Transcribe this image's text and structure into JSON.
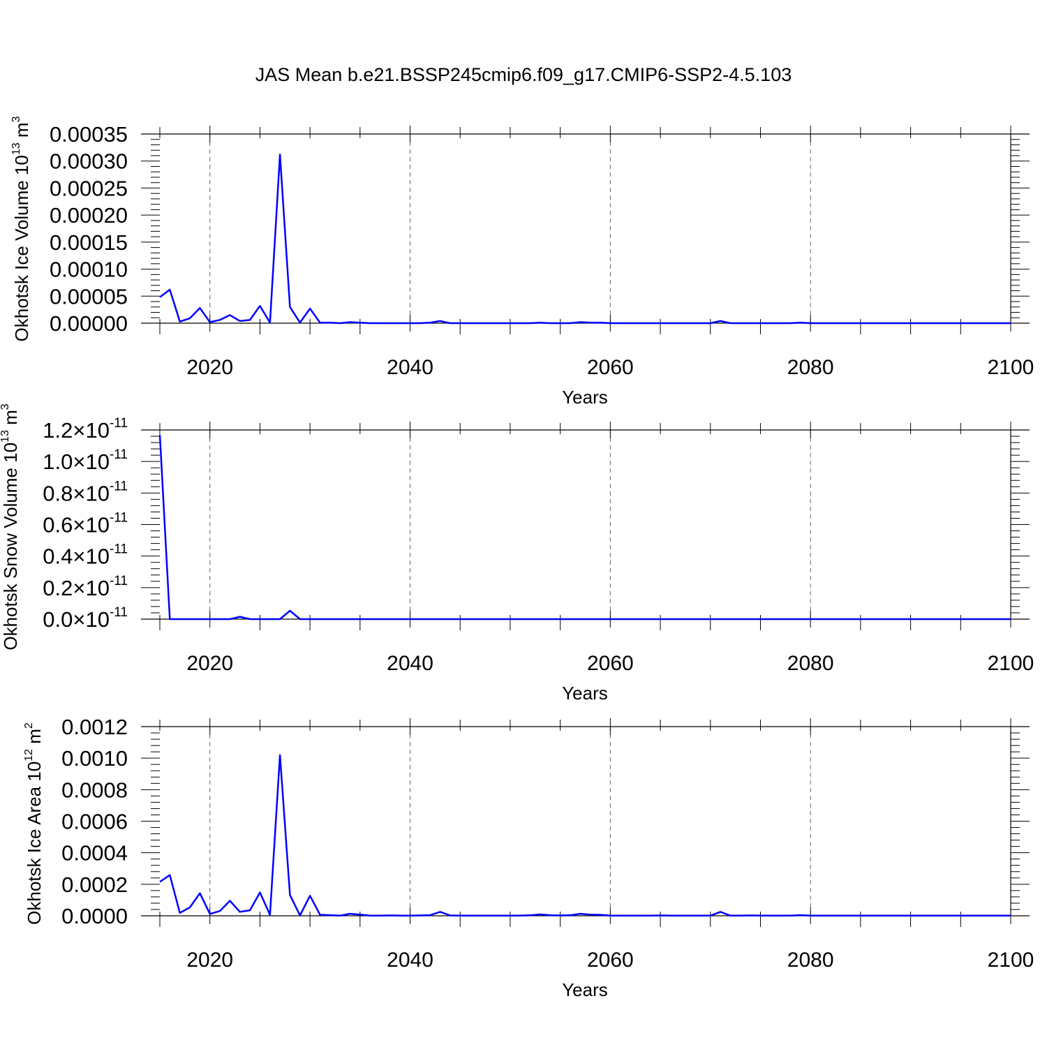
{
  "title": "JAS Mean b.e21.BSSP245cmip6.f09_g17.CMIP6-SSP2-4.5.103",
  "chart_data": [
    {
      "type": "line",
      "ylabel": "Okhotsk Ice Volume 10",
      "ylabel_exp": "13",
      "ylabel_unit": " m",
      "ylabel_unit_exp": "3",
      "xlabel": "Years",
      "xlim": [
        2015,
        2100
      ],
      "ylim": [
        0,
        0.00035
      ],
      "x_ticks": [
        2020,
        2040,
        2060,
        2080,
        2100
      ],
      "y_ticks": [
        "0.00000",
        "0.00005",
        "0.00010",
        "0.00015",
        "0.00020",
        "0.00025",
        "0.00030",
        "0.00035"
      ],
      "y_tick_values": [
        0,
        5e-05,
        0.0001,
        0.00015,
        0.0002,
        0.00025,
        0.0003,
        0.00035
      ],
      "line_color": "#0000ff",
      "grid": "vertical dashed at labeled years",
      "series": [
        {
          "x": [
            2015,
            2016,
            2017,
            2018,
            2019,
            2020,
            2021,
            2022,
            2023,
            2024,
            2025,
            2026,
            2027,
            2028,
            2029,
            2030,
            2031,
            2032,
            2033,
            2034,
            2035,
            2036,
            2037,
            2038,
            2039,
            2040,
            2041,
            2042,
            2043,
            2044,
            2045,
            2046,
            2047,
            2048,
            2049,
            2050,
            2051,
            2052,
            2053,
            2054,
            2055,
            2056,
            2057,
            2058,
            2059,
            2060,
            2061,
            2062,
            2063,
            2064,
            2065,
            2066,
            2067,
            2068,
            2069,
            2070,
            2071,
            2072,
            2073,
            2074,
            2075,
            2076,
            2077,
            2078,
            2079,
            2080,
            2081,
            2082,
            2083,
            2084,
            2085,
            2086,
            2087,
            2088,
            2089,
            2090,
            2091,
            2092,
            2093,
            2094,
            2095,
            2096,
            2097,
            2098,
            2099,
            2100
          ],
          "y": [
            4.8e-05,
            6.2e-05,
            3e-06,
            9e-06,
            2.8e-05,
            2e-06,
            6e-06,
            1.5e-05,
            4e-06,
            6e-06,
            3.2e-05,
            1e-06,
            0.000312,
            3e-05,
            1e-06,
            2.7e-05,
            1e-06,
            1e-06,
            0.0,
            2e-06,
            1e-06,
            0.0,
            0.0,
            0.0,
            0.0,
            0.0,
            0.0,
            1e-06,
            4e-06,
            0.0,
            0.0,
            0.0,
            0.0,
            0.0,
            0.0,
            0.0,
            0.0,
            0.0,
            1e-06,
            0.0,
            0.0,
            0.0,
            2e-06,
            1e-06,
            1e-06,
            0.0,
            0.0,
            0.0,
            0.0,
            0.0,
            0.0,
            0.0,
            0.0,
            0.0,
            0.0,
            0.0,
            4e-06,
            0.0,
            0.0,
            0.0,
            0.0,
            0.0,
            0.0,
            0.0,
            1e-06,
            0.0,
            0.0,
            0.0,
            0.0,
            0.0,
            0.0,
            0.0,
            0.0,
            0.0,
            0.0,
            0.0,
            0.0,
            0.0,
            0.0,
            0.0,
            0.0,
            0.0,
            0.0,
            0.0,
            0.0,
            0.0
          ]
        }
      ]
    },
    {
      "type": "line",
      "ylabel": "Okhotsk Snow Volume 10",
      "ylabel_exp": "13",
      "ylabel_unit": " m",
      "ylabel_unit_exp": "3",
      "xlabel": "Years",
      "xlim": [
        2015,
        2100
      ],
      "ylim": [
        0,
        1.2e-11
      ],
      "x_ticks": [
        2020,
        2040,
        2060,
        2080,
        2100
      ],
      "y_ticks": [
        "0.0",
        "0.2",
        "0.4",
        "0.6",
        "0.8",
        "1.0",
        "1.2"
      ],
      "y_tick_suffix": "×10",
      "y_tick_suffix_exp": "-11",
      "y_tick_values": [
        0,
        2e-12,
        4e-12,
        6e-12,
        8e-12,
        1e-11,
        1.2e-11
      ],
      "line_color": "#0000ff",
      "grid": "vertical dashed at labeled years",
      "series": [
        {
          "x": [
            2015,
            2016,
            2017,
            2018,
            2019,
            2020,
            2021,
            2022,
            2023,
            2024,
            2025,
            2026,
            2027,
            2028,
            2029,
            2030,
            2031,
            2032,
            2033,
            2034,
            2035,
            2036,
            2037,
            2038,
            2039,
            2040,
            2041,
            2042,
            2043,
            2044,
            2045,
            2046,
            2047,
            2048,
            2049,
            2050,
            2051,
            2052,
            2053,
            2054,
            2055,
            2056,
            2057,
            2058,
            2059,
            2060,
            2061,
            2062,
            2063,
            2064,
            2065,
            2066,
            2067,
            2068,
            2069,
            2070,
            2071,
            2072,
            2073,
            2074,
            2075,
            2076,
            2077,
            2078,
            2079,
            2080,
            2081,
            2082,
            2083,
            2084,
            2085,
            2086,
            2087,
            2088,
            2089,
            2090,
            2091,
            2092,
            2093,
            2094,
            2095,
            2096,
            2097,
            2098,
            2099,
            2100
          ],
          "y": [
            1.17e-11,
            0.0,
            0.0,
            0.0,
            0.0,
            0.0,
            0.0,
            0.0,
            1.5e-13,
            0.0,
            0.0,
            0.0,
            0.0,
            5.3e-13,
            0.0,
            0.0,
            0.0,
            0.0,
            0.0,
            0.0,
            0.0,
            0.0,
            0.0,
            0.0,
            0.0,
            0.0,
            0.0,
            0.0,
            0.0,
            0.0,
            0.0,
            0.0,
            0.0,
            0.0,
            0.0,
            0.0,
            0.0,
            0.0,
            0.0,
            0.0,
            0.0,
            0.0,
            0.0,
            0.0,
            0.0,
            0.0,
            0.0,
            0.0,
            0.0,
            0.0,
            0.0,
            0.0,
            0.0,
            0.0,
            0.0,
            0.0,
            0.0,
            0.0,
            0.0,
            0.0,
            0.0,
            0.0,
            0.0,
            0.0,
            0.0,
            0.0,
            0.0,
            0.0,
            0.0,
            0.0,
            0.0,
            0.0,
            0.0,
            0.0,
            0.0,
            0.0,
            0.0,
            0.0,
            0.0,
            0.0,
            0.0,
            0.0,
            0.0,
            0.0,
            0.0,
            0.0
          ]
        }
      ]
    },
    {
      "type": "line",
      "ylabel": "Okhotsk Ice Area 10",
      "ylabel_exp": "12",
      "ylabel_unit": " m",
      "ylabel_unit_exp": "2",
      "xlabel": "Years",
      "xlim": [
        2015,
        2100
      ],
      "ylim": [
        0,
        0.0012
      ],
      "x_ticks": [
        2020,
        2040,
        2060,
        2080,
        2100
      ],
      "y_ticks": [
        "0.0000",
        "0.0002",
        "0.0004",
        "0.0006",
        "0.0008",
        "0.0010",
        "0.0012"
      ],
      "y_tick_values": [
        0,
        0.0002,
        0.0004,
        0.0006,
        0.0008,
        0.001,
        0.0012
      ],
      "line_color": "#0000ff",
      "grid": "vertical dashed at labeled years",
      "series": [
        {
          "x": [
            2015,
            2016,
            2017,
            2018,
            2019,
            2020,
            2021,
            2022,
            2023,
            2024,
            2025,
            2026,
            2027,
            2028,
            2029,
            2030,
            2031,
            2032,
            2033,
            2034,
            2035,
            2036,
            2037,
            2038,
            2039,
            2040,
            2041,
            2042,
            2043,
            2044,
            2045,
            2046,
            2047,
            2048,
            2049,
            2050,
            2051,
            2052,
            2053,
            2054,
            2055,
            2056,
            2057,
            2058,
            2059,
            2060,
            2061,
            2062,
            2063,
            2064,
            2065,
            2066,
            2067,
            2068,
            2069,
            2070,
            2071,
            2072,
            2073,
            2074,
            2075,
            2076,
            2077,
            2078,
            2079,
            2080,
            2081,
            2082,
            2083,
            2084,
            2085,
            2086,
            2087,
            2088,
            2089,
            2090,
            2091,
            2092,
            2093,
            2094,
            2095,
            2096,
            2097,
            2098,
            2099,
            2100
          ],
          "y": [
            0.000215,
            0.000258,
            1.8e-05,
            5.3e-05,
            0.000143,
            1.2e-05,
            3e-05,
            9.5e-05,
            2.5e-05,
            3.5e-05,
            0.000148,
            6e-06,
            0.00102,
            0.000132,
            2e-06,
            0.000127,
            6e-06,
            4e-06,
            1e-06,
            1.3e-05,
            7e-06,
            1e-06,
            1e-06,
            2e-06,
            1e-06,
            1e-06,
            2e-06,
            4e-06,
            2.5e-05,
            2e-06,
            1e-06,
            1e-06,
            1e-06,
            1e-06,
            1e-06,
            1e-06,
            1e-06,
            3e-06,
            9e-06,
            3e-06,
            2e-06,
            3e-06,
            1.3e-05,
            7e-06,
            6e-06,
            1e-06,
            1e-06,
            1e-06,
            1e-06,
            1e-06,
            2e-06,
            1e-06,
            1e-06,
            1e-06,
            1e-06,
            1e-06,
            2.5e-05,
            1e-06,
            1e-06,
            2e-06,
            1e-06,
            1e-06,
            1e-06,
            1e-06,
            4e-06,
            1e-06,
            1e-06,
            1e-06,
            1e-06,
            1e-06,
            1e-06,
            1e-06,
            1e-06,
            1e-06,
            1e-06,
            1e-06,
            1e-06,
            1e-06,
            1e-06,
            1e-06,
            1e-06,
            1e-06,
            1e-06,
            1e-06,
            1e-06,
            1e-06
          ]
        }
      ]
    }
  ]
}
